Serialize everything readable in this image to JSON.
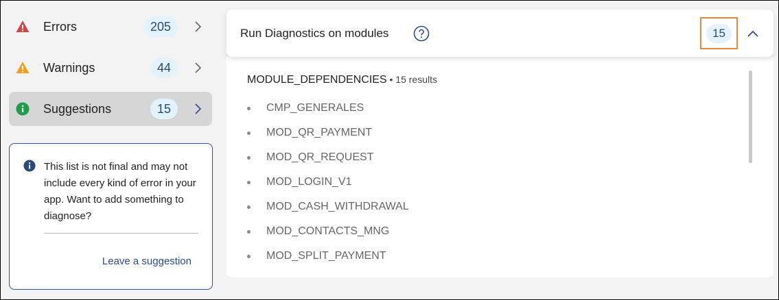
{
  "sidebar": {
    "items": [
      {
        "label": "Errors",
        "count": "205",
        "icon": "error-triangle-icon",
        "color": "#d0474a"
      },
      {
        "label": "Warnings",
        "count": "44",
        "icon": "warning-triangle-icon",
        "color": "#f59d1c"
      },
      {
        "label": "Suggestions",
        "count": "15",
        "icon": "info-circle-icon",
        "color": "#1e9e4a",
        "active": true
      }
    ],
    "info": {
      "text": "This list is not final and may not include every kind of error in your app. Want to add something to diagnose?",
      "link": "Leave a suggestion"
    }
  },
  "panel": {
    "title": "Run Diagnostics on modules",
    "count": "15",
    "section": "MODULE_DEPENDENCIES",
    "section_sep": " • ",
    "results": "15 results",
    "items": [
      "CMP_GENERALES",
      "MOD_QR_PAYMENT",
      "MOD_QR_REQUEST",
      "MOD_LOGIN_V1",
      "MOD_CASH_WITHDRAWAL",
      "MOD_CONTACTS_MNG",
      "MOD_SPLIT_PAYMENT"
    ]
  }
}
